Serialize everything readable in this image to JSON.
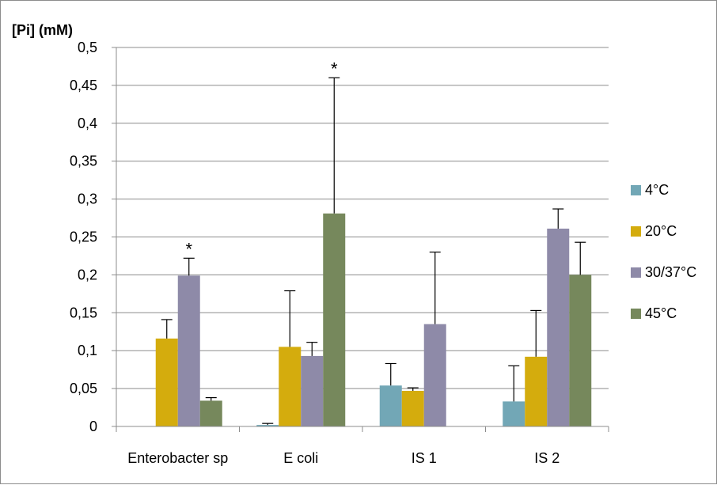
{
  "chart_data": {
    "type": "bar",
    "title": "",
    "xlabel": "",
    "ylabel": "[Pi] (mM)",
    "ylim": [
      0,
      0.5
    ],
    "yticks": [
      0,
      0.05,
      0.1,
      0.15,
      0.2,
      0.25,
      0.3,
      0.35,
      0.4,
      0.45,
      0.5
    ],
    "ytick_labels": [
      "0",
      "0,05",
      "0,1",
      "0,15",
      "0,2",
      "0,25",
      "0,3",
      "0,35",
      "0,4",
      "0,45",
      "0,5"
    ],
    "categories": [
      "Enterobacter sp",
      "E coli",
      "IS 1",
      "IS 2"
    ],
    "series": [
      {
        "name": "4°C",
        "color": "#72a7b6",
        "values": [
          0,
          0.002,
          0.054,
          0.033
        ],
        "errors": [
          0,
          0.002,
          0.029,
          0.047
        ]
      },
      {
        "name": "20°C",
        "color": "#d4ac0d",
        "values": [
          0.116,
          0.105,
          0.047,
          0.092
        ],
        "errors": [
          0.025,
          0.074,
          0.004,
          0.061
        ]
      },
      {
        "name": "30/37°C",
        "color": "#8e8aa8",
        "values": [
          0.199,
          0.093,
          0.135,
          0.261
        ],
        "errors": [
          0.023,
          0.018,
          0.095,
          0.026
        ]
      },
      {
        "name": "45°C",
        "color": "#76885c",
        "values": [
          0.034,
          0.281,
          0,
          0.2
        ],
        "errors": [
          0.004,
          0.179,
          0,
          0.043
        ]
      }
    ],
    "annotations": [
      {
        "category": "Enterobacter sp",
        "series": "30/37°C",
        "text": "*"
      },
      {
        "category": "E coli",
        "series": "45°C",
        "text": "*"
      }
    ],
    "grid": true,
    "legend_position": "right"
  }
}
